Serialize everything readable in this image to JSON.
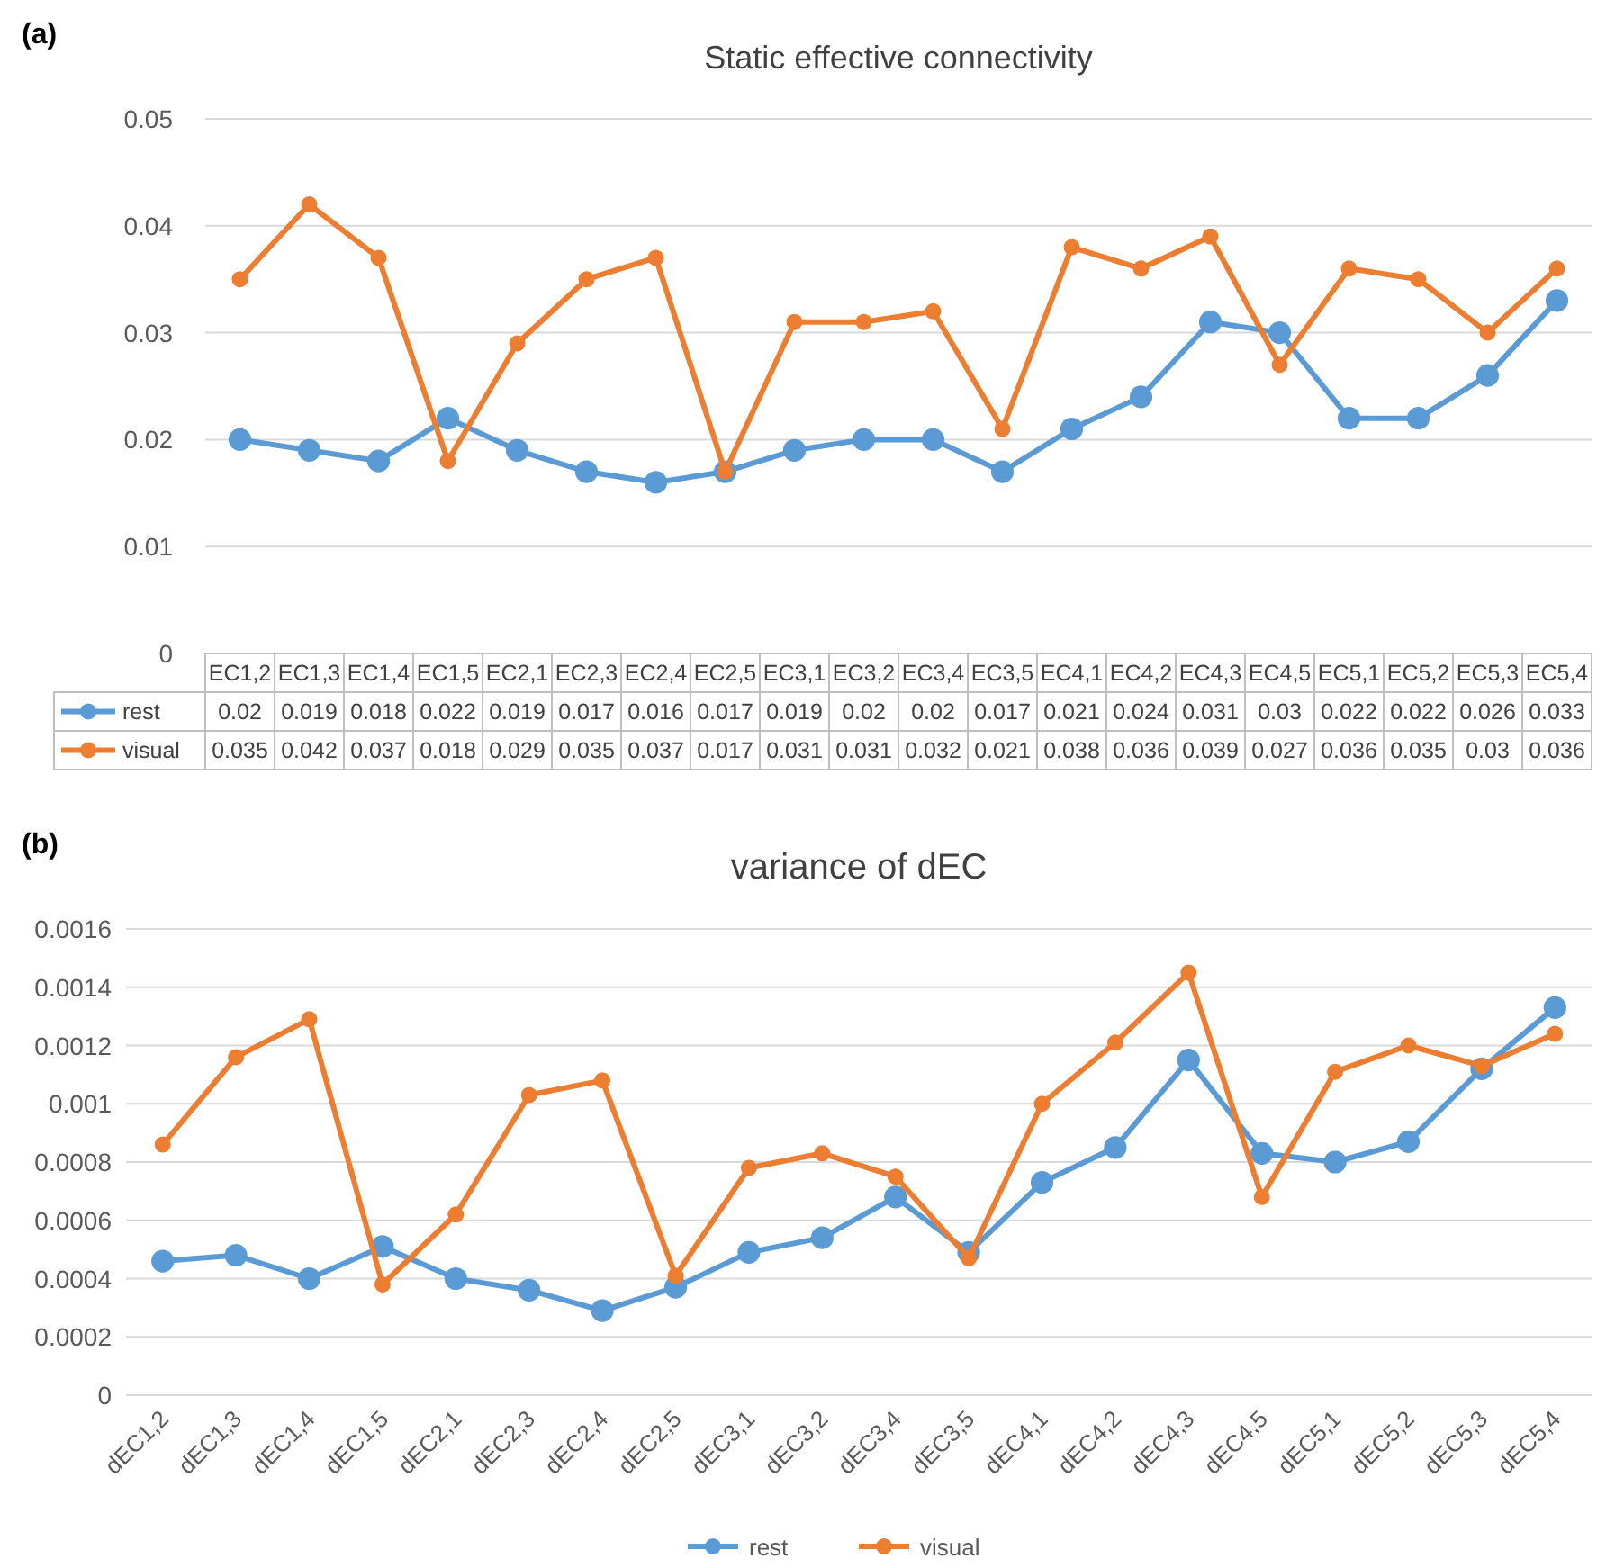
{
  "chart_data": [
    {
      "type": "line",
      "title": "Static effective connectivity",
      "annotations": [
        "(a)"
      ],
      "categories": [
        "EC1,2",
        "EC1,3",
        "EC1,4",
        "EC1,5",
        "EC2,1",
        "EC2,3",
        "EC2,4",
        "EC2,5",
        "EC3,1",
        "EC3,2",
        "EC3,4",
        "EC3,5",
        "EC4,1",
        "EC4,2",
        "EC4,3",
        "EC4,5",
        "EC5,1",
        "EC5,2",
        "EC5,3",
        "EC5,4"
      ],
      "series": [
        {
          "name": "rest",
          "color": "#5b9bd5",
          "values": [
            0.02,
            0.019,
            0.018,
            0.022,
            0.019,
            0.017,
            0.016,
            0.017,
            0.019,
            0.02,
            0.02,
            0.017,
            0.021,
            0.024,
            0.031,
            0.03,
            0.022,
            0.022,
            0.026,
            0.033
          ]
        },
        {
          "name": "visual",
          "color": "#ed7d31",
          "values": [
            0.035,
            0.042,
            0.037,
            0.018,
            0.029,
            0.035,
            0.037,
            0.017,
            0.031,
            0.031,
            0.032,
            0.021,
            0.038,
            0.036,
            0.039,
            0.027,
            0.036,
            0.035,
            0.03,
            0.036
          ]
        }
      ],
      "ylim": [
        0,
        0.05
      ],
      "yticks": [
        0,
        0.01,
        0.02,
        0.03,
        0.04,
        0.05
      ],
      "grid": "y",
      "marker": "circle",
      "data_labels": true,
      "legend": "bottom"
    },
    {
      "type": "line",
      "title": "variance of dEC",
      "annotations": [
        "(b)"
      ],
      "categories": [
        "dEC1,2",
        "dEC1,3",
        "dEC1,4",
        "dEC1,5",
        "dEC2,1",
        "dEC2,3",
        "dEC2,4",
        "dEC2,5",
        "dEC3,1",
        "dEC3,2",
        "dEC3,4",
        "dEC3,5",
        "dEC4,1",
        "dEC4,2",
        "dEC4,3",
        "dEC4,5",
        "dEC5,1",
        "dEC5,2",
        "dEC5,3",
        "dEC5,4"
      ],
      "series": [
        {
          "name": "rest",
          "color": "#5b9bd5",
          "values": [
            0.00046,
            0.00048,
            0.0004,
            0.00051,
            0.0004,
            0.00036,
            0.00029,
            0.00037,
            0.00049,
            0.00054,
            0.00068,
            0.00049,
            0.00073,
            0.00085,
            0.00115,
            0.00083,
            0.0008,
            0.00087,
            0.00112,
            0.00133
          ]
        },
        {
          "name": "visual",
          "color": "#ed7d31",
          "values": [
            0.00086,
            0.00116,
            0.00129,
            0.00038,
            0.00062,
            0.00103,
            0.00108,
            0.00041,
            0.00078,
            0.00083,
            0.00075,
            0.00047,
            0.001,
            0.00121,
            0.00145,
            0.00068,
            0.00111,
            0.0012,
            0.00113,
            0.00124
          ]
        }
      ],
      "ylim": [
        0,
        0.0016
      ],
      "yticks": [
        0,
        0.0002,
        0.0004,
        0.0006,
        0.0008,
        0.001,
        0.0012,
        0.0014,
        0.0016
      ],
      "grid": "y",
      "marker": "circle",
      "legend": "bottom"
    }
  ]
}
